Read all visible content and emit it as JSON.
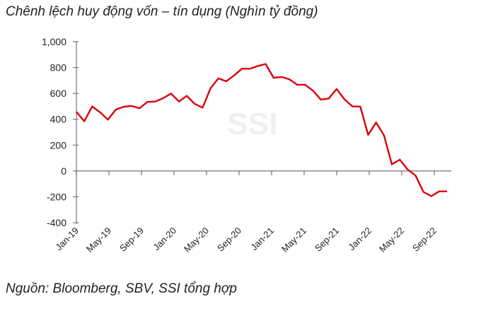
{
  "chart_data": {
    "type": "line",
    "title": "Chênh lệch huy động vốn – tín dụng (Nghìn tỷ đồng)",
    "source": "Nguồn:  Bloomberg, SBV, SSI tổng hợp",
    "watermark": "SSI",
    "xlabel": "",
    "ylabel": "",
    "ylim": [
      -400,
      1000
    ],
    "yticks": [
      "1,000",
      "800",
      "600",
      "400",
      "200",
      "0",
      "-200",
      "-400"
    ],
    "ytick_values": [
      1000,
      800,
      600,
      400,
      200,
      0,
      -200,
      -400
    ],
    "xtick_labels": [
      "Jan-19",
      "May-19",
      "Sep-19",
      "Jan-20",
      "May-20",
      "Sep-20",
      "Jan-21",
      "May-21",
      "Sep-21",
      "Jan-22",
      "May-22",
      "Sep-22"
    ],
    "xtick_step_months": 4,
    "x": [
      "Jan-19",
      "Feb-19",
      "Mar-19",
      "Apr-19",
      "May-19",
      "Jun-19",
      "Jul-19",
      "Aug-19",
      "Sep-19",
      "Oct-19",
      "Nov-19",
      "Dec-19",
      "Jan-20",
      "Feb-20",
      "Mar-20",
      "Apr-20",
      "May-20",
      "Jun-20",
      "Jul-20",
      "Aug-20",
      "Sep-20",
      "Oct-20",
      "Nov-20",
      "Dec-20",
      "Jan-21",
      "Feb-21",
      "Mar-21",
      "Apr-21",
      "May-21",
      "Jun-21",
      "Jul-21",
      "Aug-21",
      "Sep-21",
      "Oct-21",
      "Nov-21",
      "Dec-21",
      "Jan-22",
      "Feb-22",
      "Mar-22",
      "Apr-22",
      "May-22",
      "Jun-22",
      "Jul-22",
      "Aug-22",
      "Sep-22",
      "Oct-22",
      "Nov-22",
      "Dec-22"
    ],
    "series": [
      {
        "color": "#d9000d",
        "values": [
          457,
          384,
          499,
          454,
          397,
          475,
          497,
          503,
          485,
          534,
          537,
          563,
          599,
          537,
          581,
          519,
          490,
          639,
          716,
          694,
          739,
          791,
          791,
          812,
          827,
          721,
          727,
          709,
          667,
          667,
          621,
          552,
          561,
          634,
          554,
          499,
          498,
          279,
          375,
          275,
          51,
          87,
          11,
          -35,
          -162,
          -195,
          -158,
          -158
        ]
      }
    ],
    "grid": false,
    "legend": "none"
  }
}
